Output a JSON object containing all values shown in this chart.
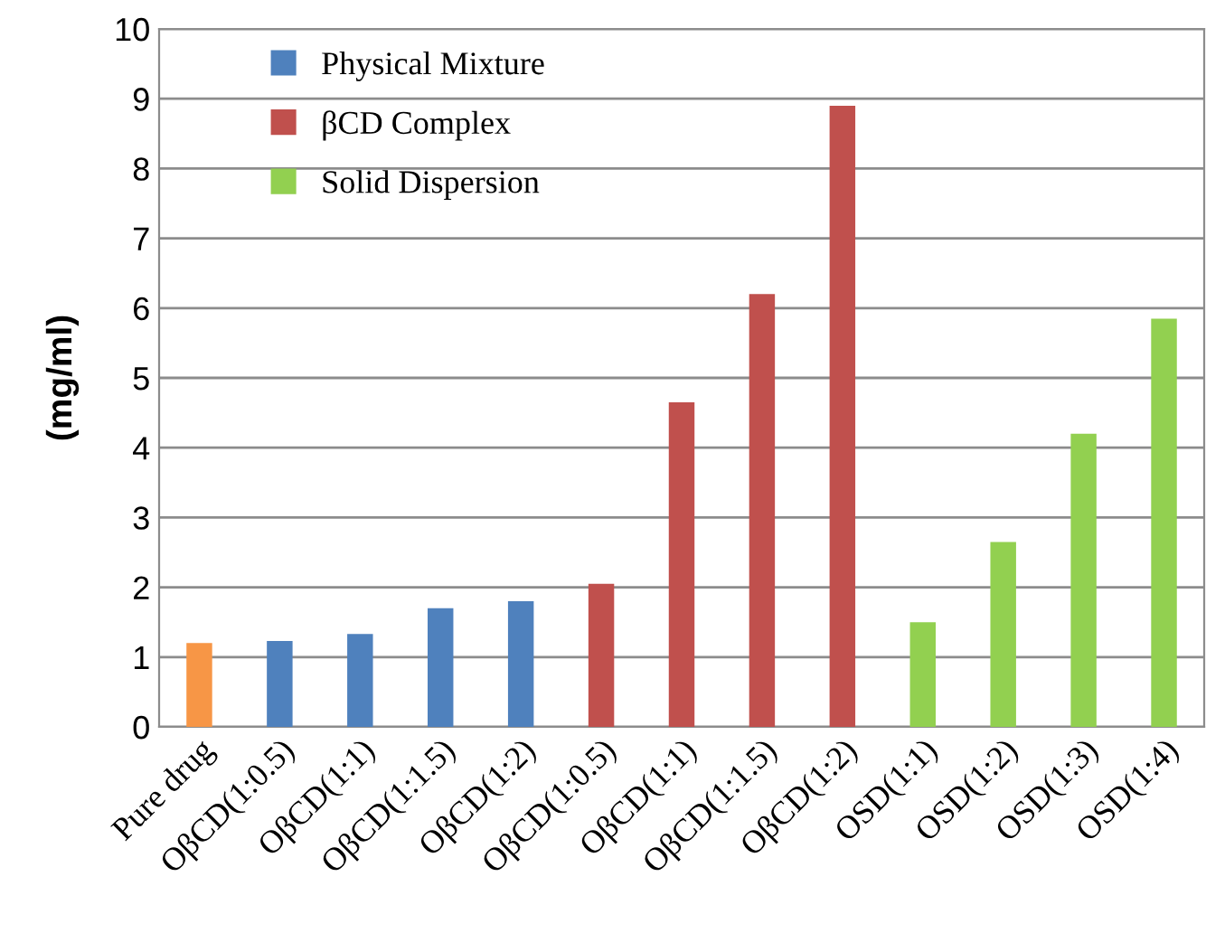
{
  "chart_data": {
    "type": "bar",
    "ylabel": "(mg/ml)",
    "categories": [
      "Pure drug",
      "OβCD(1:0.5)",
      "OβCD(1:1)",
      "OβCD(1:1.5)",
      "OβCD(1:2)",
      "OβCD(1:0.5)",
      "OβCD(1:1)",
      "OβCD(1:1.5)",
      "OβCD(1:2)",
      "OSD(1:1)",
      "OSD(1:2)",
      "OSD(1:3)",
      "OSD(1:4)"
    ],
    "series": [
      {
        "color": "#f79646",
        "values": [
          1.2,
          null,
          null,
          null,
          null,
          null,
          null,
          null,
          null,
          null,
          null,
          null,
          null
        ]
      },
      {
        "name": "Physical Mixture",
        "color": "#4f81bd",
        "values": [
          null,
          1.23,
          1.33,
          1.7,
          1.8,
          null,
          null,
          null,
          null,
          null,
          null,
          null,
          null
        ]
      },
      {
        "name": "βCD Complex",
        "color": "#c0504d",
        "values": [
          null,
          null,
          null,
          null,
          null,
          2.05,
          4.65,
          6.2,
          8.9,
          null,
          null,
          null,
          null
        ]
      },
      {
        "name": "Solid Dispersion",
        "color": "#92d050",
        "values": [
          null,
          null,
          null,
          null,
          null,
          null,
          null,
          null,
          null,
          1.5,
          2.65,
          4.2,
          5.85
        ]
      }
    ],
    "ylim": [
      0,
      10
    ],
    "yticks": [
      0,
      1,
      2,
      3,
      4,
      5,
      6,
      7,
      8,
      9,
      10
    ],
    "grid": "y",
    "legend": "top left"
  }
}
